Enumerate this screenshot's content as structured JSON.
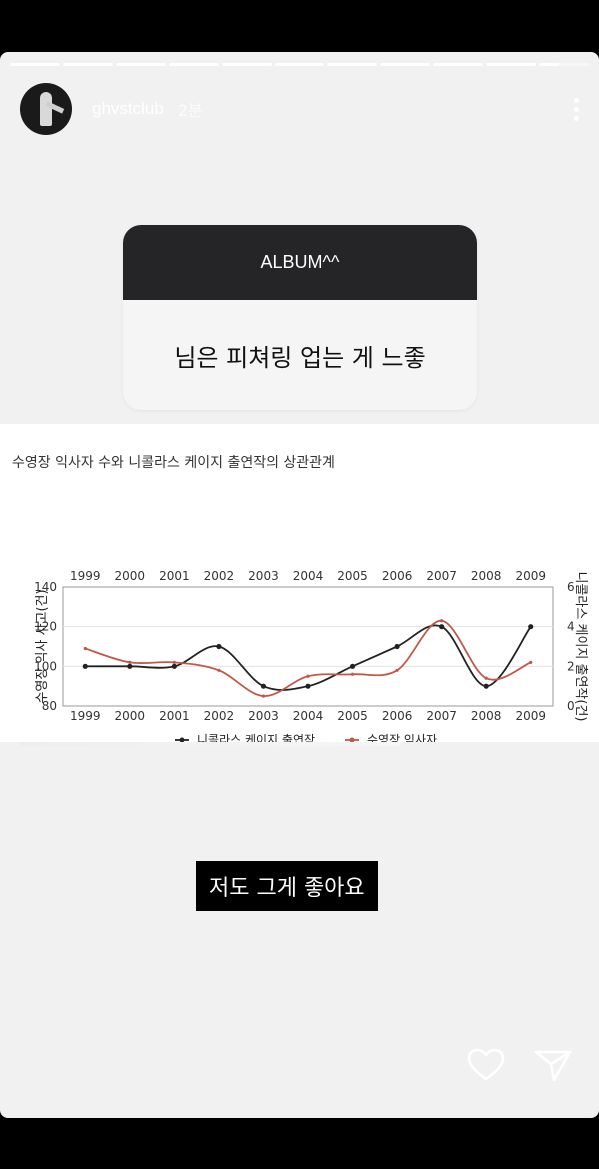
{
  "story": {
    "username": "ghvstclub",
    "time": "2분",
    "segments": 11
  },
  "question": {
    "prompt": "ALBUM^^",
    "answer": "님은 피쳐링 업는 게 느좋"
  },
  "caption": "저도 그게 좋아요",
  "chart_data": {
    "type": "line",
    "title": "수영장 익사자 수와 니콜라스 케이지 출연작의 상관관계",
    "categories": [
      "1999",
      "2000",
      "2001",
      "2002",
      "2003",
      "2004",
      "2005",
      "2006",
      "2007",
      "2008",
      "2009"
    ],
    "y_left": {
      "label": "수영장 익사 사고(건)",
      "ticks": [
        "140",
        "120",
        "100",
        "80"
      ],
      "range": [
        80,
        140
      ]
    },
    "y_right": {
      "label": "니콜라스 케이지 출연작(건)",
      "ticks": [
        "6",
        "4",
        "2",
        "0"
      ],
      "range": [
        0,
        6
      ]
    },
    "series": [
      {
        "name": "니콜라스 케이지 출연작",
        "axis": "right",
        "color": "#222222",
        "values": [
          2,
          2,
          2,
          3,
          1,
          1,
          2,
          3,
          4,
          1,
          4
        ]
      },
      {
        "name": "수영장 익사자",
        "axis": "left",
        "color": "#c0584a",
        "values": [
          109,
          102,
          102,
          98,
          85,
          95,
          96,
          98,
          123,
          94,
          102
        ]
      }
    ]
  }
}
